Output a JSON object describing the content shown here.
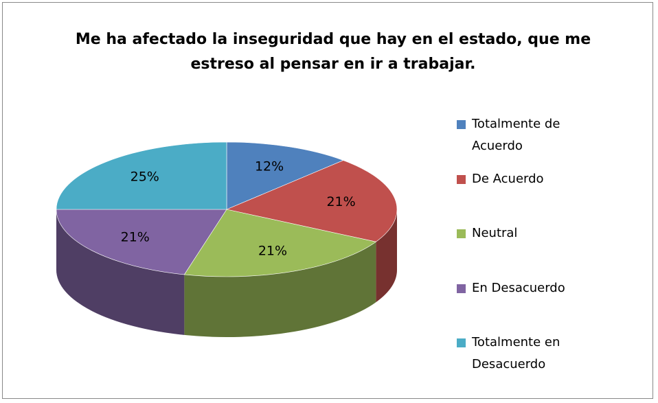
{
  "chart_data": {
    "type": "pie",
    "title": "Me ha afectado la inseguridad que hay en el estado, que me estreso al pensar en ir a trabajar.",
    "categories": [
      "Totalmente de Acuerdo",
      "De Acuerdo",
      "Neutral",
      "En Desacuerdo",
      "Totalmente en Desacuerdo"
    ],
    "values": [
      12,
      21,
      21,
      21,
      25
    ],
    "value_labels": [
      "12%",
      "21%",
      "21%",
      "21%",
      "25%"
    ],
    "colors": [
      "#4f81bd",
      "#c0504d",
      "#9bbb59",
      "#8064a2",
      "#4bacc6"
    ],
    "legend": "right"
  }
}
